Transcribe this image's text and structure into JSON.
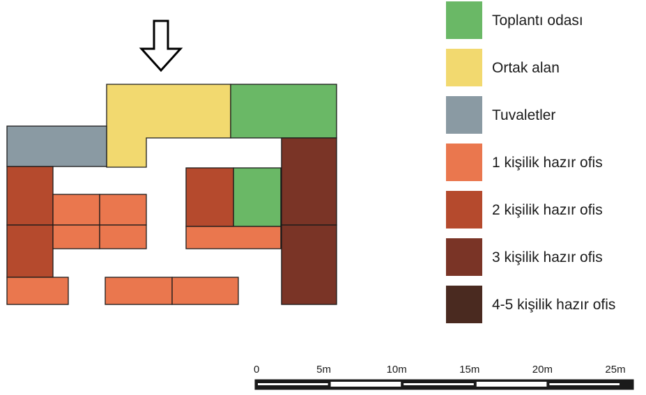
{
  "legend": [
    {
      "key": "meeting",
      "label": "Toplantı odası",
      "color": "#6ab866"
    },
    {
      "key": "common",
      "label": "Ortak alan",
      "color": "#f2d96f"
    },
    {
      "key": "toilet",
      "label": "Tuvaletler",
      "color": "#8a9aa3"
    },
    {
      "key": "office1",
      "label": "1 kişilik hazır ofis",
      "color": "#ea774e"
    },
    {
      "key": "office2",
      "label": "2 kişilik hazır ofis",
      "color": "#b54a2d"
    },
    {
      "key": "office3",
      "label": "3 kişilik hazır ofis",
      "color": "#7a3426"
    },
    {
      "key": "office45",
      "label": "4-5 kişilik hazır ofis",
      "color": "#4a2a20"
    }
  ],
  "scale_bar": {
    "ticks": [
      "0",
      "5m",
      "10m",
      "15m",
      "20m",
      "25m"
    ]
  },
  "entrance": {
    "icon": "entrance-arrow-icon"
  }
}
